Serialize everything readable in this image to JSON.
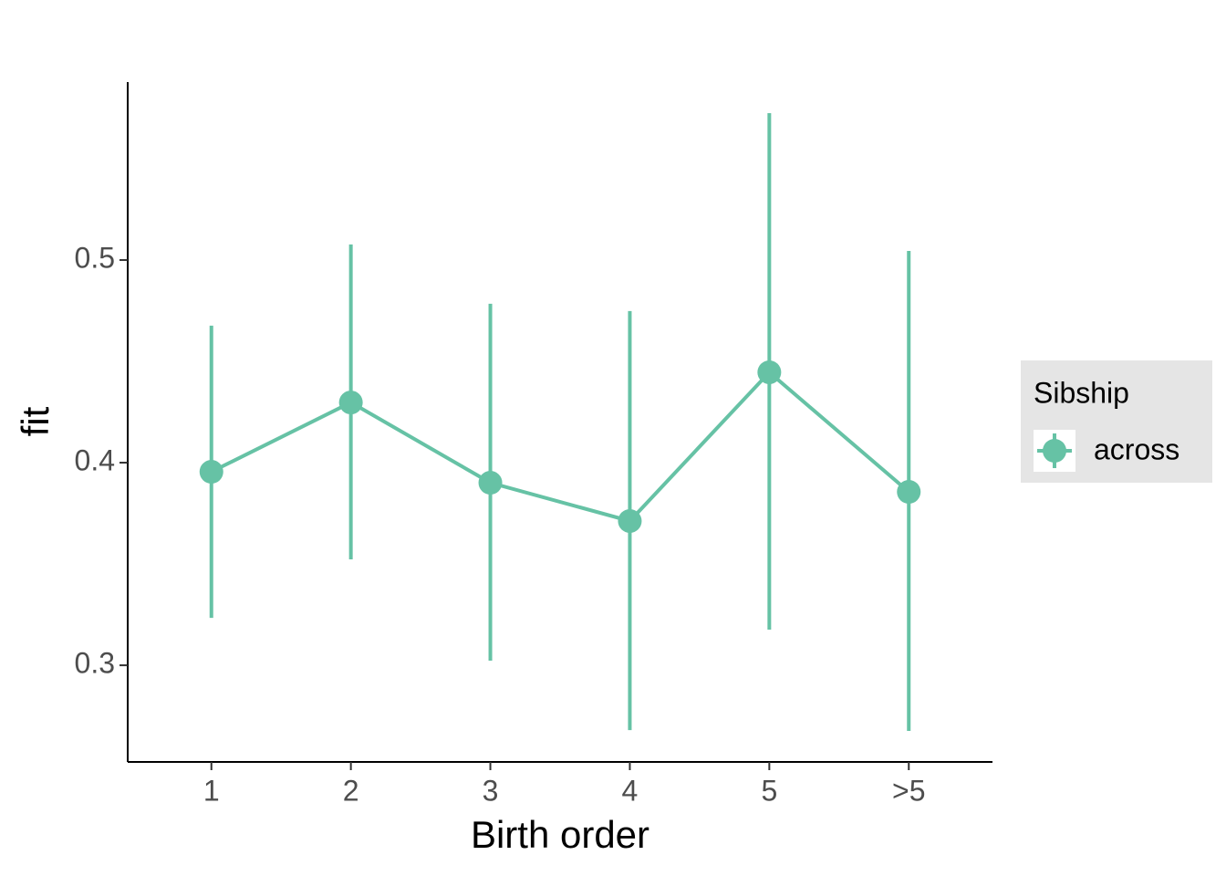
{
  "chart_data": {
    "type": "line",
    "x_label": "Birth order",
    "y_label": "fit",
    "categories": [
      "1",
      "2",
      "3",
      "4",
      "5",
      ">5"
    ],
    "series": [
      {
        "name": "across",
        "color": "#66c2a5",
        "values": [
          0.3955,
          0.4297,
          0.3901,
          0.3712,
          0.4446,
          0.3856
        ],
        "lower": [
          0.3234,
          0.3523,
          0.3023,
          0.268,
          0.3176,
          0.2676
        ],
        "upper": [
          0.4676,
          0.5077,
          0.4784,
          0.4748,
          0.5725,
          0.5045
        ]
      }
    ],
    "ylim": [
      0.2523,
      0.5878
    ],
    "yticks": [
      0.3,
      0.4,
      0.5
    ],
    "legend_title": "Sibship",
    "legend": "right",
    "grid": false
  }
}
